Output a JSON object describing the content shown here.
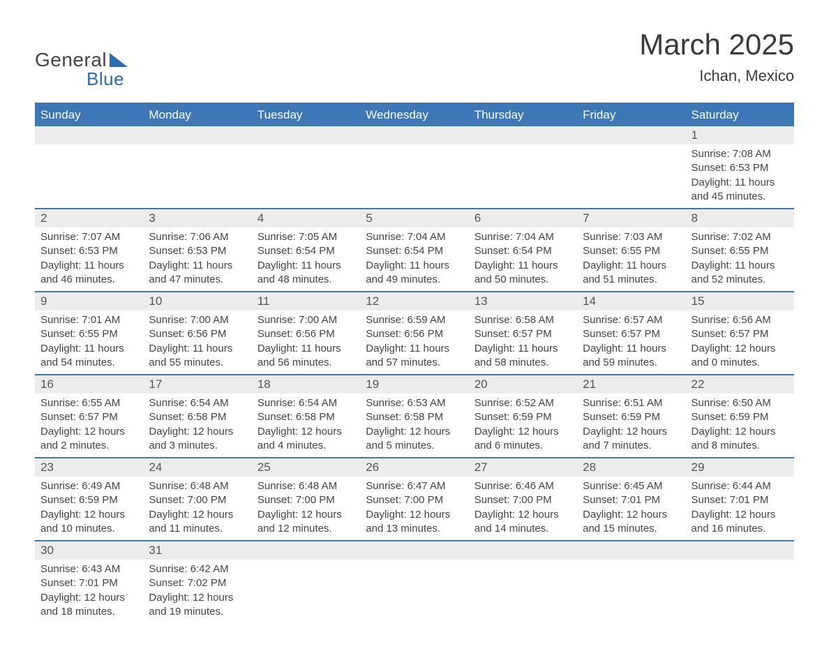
{
  "logo": {
    "text1": "General",
    "text2": "Blue",
    "shape_color": "#2a6db5",
    "text1_color": "#444444",
    "text2_color": "#2a6db5"
  },
  "title": "March 2025",
  "location": "Ichan, Mexico",
  "colors": {
    "header_bg": "#3d77b6",
    "header_text": "#ffffff",
    "daynum_bg": "#ececec",
    "row_divider": "#3d77b6",
    "body_text": "#444444",
    "background": "#ffffff"
  },
  "typography": {
    "title_fontsize": 42,
    "location_fontsize": 22,
    "weekday_fontsize": 17,
    "daynum_fontsize": 17,
    "body_fontsize": 15
  },
  "weekdays": [
    "Sunday",
    "Monday",
    "Tuesday",
    "Wednesday",
    "Thursday",
    "Friday",
    "Saturday"
  ],
  "weeks": [
    [
      null,
      null,
      null,
      null,
      null,
      null,
      {
        "day": "1",
        "sunrise": "Sunrise: 7:08 AM",
        "sunset": "Sunset: 6:53 PM",
        "d1": "Daylight: 11 hours",
        "d2": "and 45 minutes."
      }
    ],
    [
      {
        "day": "2",
        "sunrise": "Sunrise: 7:07 AM",
        "sunset": "Sunset: 6:53 PM",
        "d1": "Daylight: 11 hours",
        "d2": "and 46 minutes."
      },
      {
        "day": "3",
        "sunrise": "Sunrise: 7:06 AM",
        "sunset": "Sunset: 6:53 PM",
        "d1": "Daylight: 11 hours",
        "d2": "and 47 minutes."
      },
      {
        "day": "4",
        "sunrise": "Sunrise: 7:05 AM",
        "sunset": "Sunset: 6:54 PM",
        "d1": "Daylight: 11 hours",
        "d2": "and 48 minutes."
      },
      {
        "day": "5",
        "sunrise": "Sunrise: 7:04 AM",
        "sunset": "Sunset: 6:54 PM",
        "d1": "Daylight: 11 hours",
        "d2": "and 49 minutes."
      },
      {
        "day": "6",
        "sunrise": "Sunrise: 7:04 AM",
        "sunset": "Sunset: 6:54 PM",
        "d1": "Daylight: 11 hours",
        "d2": "and 50 minutes."
      },
      {
        "day": "7",
        "sunrise": "Sunrise: 7:03 AM",
        "sunset": "Sunset: 6:55 PM",
        "d1": "Daylight: 11 hours",
        "d2": "and 51 minutes."
      },
      {
        "day": "8",
        "sunrise": "Sunrise: 7:02 AM",
        "sunset": "Sunset: 6:55 PM",
        "d1": "Daylight: 11 hours",
        "d2": "and 52 minutes."
      }
    ],
    [
      {
        "day": "9",
        "sunrise": "Sunrise: 7:01 AM",
        "sunset": "Sunset: 6:55 PM",
        "d1": "Daylight: 11 hours",
        "d2": "and 54 minutes."
      },
      {
        "day": "10",
        "sunrise": "Sunrise: 7:00 AM",
        "sunset": "Sunset: 6:56 PM",
        "d1": "Daylight: 11 hours",
        "d2": "and 55 minutes."
      },
      {
        "day": "11",
        "sunrise": "Sunrise: 7:00 AM",
        "sunset": "Sunset: 6:56 PM",
        "d1": "Daylight: 11 hours",
        "d2": "and 56 minutes."
      },
      {
        "day": "12",
        "sunrise": "Sunrise: 6:59 AM",
        "sunset": "Sunset: 6:56 PM",
        "d1": "Daylight: 11 hours",
        "d2": "and 57 minutes."
      },
      {
        "day": "13",
        "sunrise": "Sunrise: 6:58 AM",
        "sunset": "Sunset: 6:57 PM",
        "d1": "Daylight: 11 hours",
        "d2": "and 58 minutes."
      },
      {
        "day": "14",
        "sunrise": "Sunrise: 6:57 AM",
        "sunset": "Sunset: 6:57 PM",
        "d1": "Daylight: 11 hours",
        "d2": "and 59 minutes."
      },
      {
        "day": "15",
        "sunrise": "Sunrise: 6:56 AM",
        "sunset": "Sunset: 6:57 PM",
        "d1": "Daylight: 12 hours",
        "d2": "and 0 minutes."
      }
    ],
    [
      {
        "day": "16",
        "sunrise": "Sunrise: 6:55 AM",
        "sunset": "Sunset: 6:57 PM",
        "d1": "Daylight: 12 hours",
        "d2": "and 2 minutes."
      },
      {
        "day": "17",
        "sunrise": "Sunrise: 6:54 AM",
        "sunset": "Sunset: 6:58 PM",
        "d1": "Daylight: 12 hours",
        "d2": "and 3 minutes."
      },
      {
        "day": "18",
        "sunrise": "Sunrise: 6:54 AM",
        "sunset": "Sunset: 6:58 PM",
        "d1": "Daylight: 12 hours",
        "d2": "and 4 minutes."
      },
      {
        "day": "19",
        "sunrise": "Sunrise: 6:53 AM",
        "sunset": "Sunset: 6:58 PM",
        "d1": "Daylight: 12 hours",
        "d2": "and 5 minutes."
      },
      {
        "day": "20",
        "sunrise": "Sunrise: 6:52 AM",
        "sunset": "Sunset: 6:59 PM",
        "d1": "Daylight: 12 hours",
        "d2": "and 6 minutes."
      },
      {
        "day": "21",
        "sunrise": "Sunrise: 6:51 AM",
        "sunset": "Sunset: 6:59 PM",
        "d1": "Daylight: 12 hours",
        "d2": "and 7 minutes."
      },
      {
        "day": "22",
        "sunrise": "Sunrise: 6:50 AM",
        "sunset": "Sunset: 6:59 PM",
        "d1": "Daylight: 12 hours",
        "d2": "and 8 minutes."
      }
    ],
    [
      {
        "day": "23",
        "sunrise": "Sunrise: 6:49 AM",
        "sunset": "Sunset: 6:59 PM",
        "d1": "Daylight: 12 hours",
        "d2": "and 10 minutes."
      },
      {
        "day": "24",
        "sunrise": "Sunrise: 6:48 AM",
        "sunset": "Sunset: 7:00 PM",
        "d1": "Daylight: 12 hours",
        "d2": "and 11 minutes."
      },
      {
        "day": "25",
        "sunrise": "Sunrise: 6:48 AM",
        "sunset": "Sunset: 7:00 PM",
        "d1": "Daylight: 12 hours",
        "d2": "and 12 minutes."
      },
      {
        "day": "26",
        "sunrise": "Sunrise: 6:47 AM",
        "sunset": "Sunset: 7:00 PM",
        "d1": "Daylight: 12 hours",
        "d2": "and 13 minutes."
      },
      {
        "day": "27",
        "sunrise": "Sunrise: 6:46 AM",
        "sunset": "Sunset: 7:00 PM",
        "d1": "Daylight: 12 hours",
        "d2": "and 14 minutes."
      },
      {
        "day": "28",
        "sunrise": "Sunrise: 6:45 AM",
        "sunset": "Sunset: 7:01 PM",
        "d1": "Daylight: 12 hours",
        "d2": "and 15 minutes."
      },
      {
        "day": "29",
        "sunrise": "Sunrise: 6:44 AM",
        "sunset": "Sunset: 7:01 PM",
        "d1": "Daylight: 12 hours",
        "d2": "and 16 minutes."
      }
    ],
    [
      {
        "day": "30",
        "sunrise": "Sunrise: 6:43 AM",
        "sunset": "Sunset: 7:01 PM",
        "d1": "Daylight: 12 hours",
        "d2": "and 18 minutes."
      },
      {
        "day": "31",
        "sunrise": "Sunrise: 6:42 AM",
        "sunset": "Sunset: 7:02 PM",
        "d1": "Daylight: 12 hours",
        "d2": "and 19 minutes."
      },
      null,
      null,
      null,
      null,
      null
    ]
  ]
}
